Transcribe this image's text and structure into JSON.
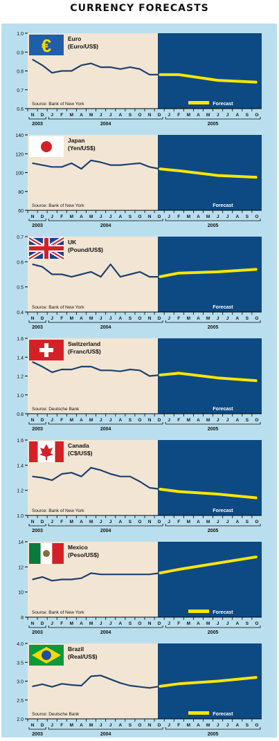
{
  "page_title": "CURRENCY FORECASTS",
  "colors": {
    "background": "#b9dfee",
    "historic_fill": "#f2e5d3",
    "forecast_fill": "#0d4a84",
    "history_line": "#1c3f6e",
    "forecast_line": "#ffe600",
    "axis": "#000000"
  },
  "legend_forecast_label": "Forecast",
  "chart_data": [
    {
      "type": "line",
      "name": "Euro",
      "unit": "(Euro/US$)",
      "flag": "euro-sign-icon",
      "source": "Source: Bank of New York",
      "legend_swatch": true,
      "ylim": [
        0.6,
        1.0
      ],
      "yticks": [
        "0.6",
        "0.7",
        "0.8",
        "0.9",
        "1.0"
      ],
      "ytick_values": [
        0.6,
        0.7,
        0.8,
        0.9,
        1.0
      ],
      "x_labels": [
        "N",
        "D",
        "J",
        "F",
        "M",
        "A",
        "M",
        "J",
        "J",
        "A",
        "S",
        "O",
        "N",
        "D",
        "J",
        "F",
        "M",
        "A",
        "M",
        "J",
        "J",
        "A",
        "S",
        "O"
      ],
      "year_labels": [
        "2003",
        "2004",
        "2005"
      ],
      "history": [
        0.86,
        0.83,
        0.79,
        0.8,
        0.8,
        0.83,
        0.84,
        0.82,
        0.82,
        0.81,
        0.82,
        0.81,
        0.78,
        0.78
      ],
      "forecast": [
        0.78,
        0.78,
        0.75,
        0.74
      ]
    },
    {
      "type": "line",
      "name": "Japan",
      "unit": "(Yen/US$)",
      "flag": "japan-flag-icon",
      "source": "Source: Bank of New York",
      "legend_swatch": false,
      "ylim": [
        60,
        140
      ],
      "yticks": [
        "60",
        "80",
        "100",
        "120",
        "140"
      ],
      "ytick_values": [
        60,
        80,
        100,
        120,
        140
      ],
      "x_labels": [
        "N",
        "D",
        "J",
        "F",
        "M",
        "A",
        "M",
        "J",
        "J",
        "A",
        "S",
        "O",
        "N",
        "D",
        "J",
        "F",
        "M",
        "A",
        "M",
        "J",
        "J",
        "A",
        "S",
        "O"
      ],
      "year_labels": [
        "2003",
        "2004",
        "2005"
      ],
      "history": [
        110,
        108,
        106,
        106,
        110,
        104,
        113,
        111,
        108,
        108,
        109,
        110,
        106,
        104
      ],
      "forecast": [
        104,
        102,
        97,
        95
      ]
    },
    {
      "type": "line",
      "name": "UK",
      "unit": "(Pound/US$)",
      "flag": "uk-flag-icon",
      "source": "Source: Bank of New York",
      "legend_swatch": false,
      "ylim": [
        0.4,
        0.7
      ],
      "yticks": [
        "0.4",
        "0.5",
        "0.6",
        "0.7"
      ],
      "ytick_values": [
        0.4,
        0.5,
        0.6,
        0.7
      ],
      "x_labels": [
        "N",
        "D",
        "J",
        "F",
        "M",
        "A",
        "M",
        "J",
        "J",
        "A",
        "S",
        "O",
        "N",
        "D",
        "J",
        "F",
        "M",
        "A",
        "M",
        "J",
        "J",
        "A",
        "S",
        "O"
      ],
      "year_labels": [
        "2003",
        "2004",
        "2005"
      ],
      "history": [
        0.59,
        0.58,
        0.55,
        0.55,
        0.54,
        0.55,
        0.56,
        0.54,
        0.59,
        0.54,
        0.55,
        0.56,
        0.54,
        0.54
      ],
      "forecast": [
        0.54,
        0.555,
        0.56,
        0.57
      ]
    },
    {
      "type": "line",
      "name": "Switzerland",
      "unit": "(Franc/US$)",
      "flag": "switzerland-flag-icon",
      "source": "Source: Deutsche Bank",
      "legend_swatch": false,
      "ylim": [
        0.8,
        1.6
      ],
      "yticks": [
        "0.8",
        "1.0",
        "1.2",
        "1.4",
        "1.6"
      ],
      "ytick_values": [
        0.8,
        1.0,
        1.2,
        1.4,
        1.6
      ],
      "x_labels": [
        "N",
        "D",
        "J",
        "F",
        "M",
        "A",
        "M",
        "J",
        "J",
        "A",
        "S",
        "O",
        "N",
        "D",
        "J",
        "F",
        "M",
        "A",
        "M",
        "J",
        "J",
        "A",
        "S",
        "O"
      ],
      "year_labels": [
        "2003",
        "2004",
        "2005"
      ],
      "history": [
        1.35,
        1.3,
        1.24,
        1.27,
        1.27,
        1.3,
        1.3,
        1.26,
        1.26,
        1.25,
        1.27,
        1.26,
        1.2,
        1.21
      ],
      "forecast": [
        1.21,
        1.23,
        1.18,
        1.15
      ]
    },
    {
      "type": "line",
      "name": "Canada",
      "unit": "(C$/US$)",
      "flag": "canada-flag-icon",
      "source": "Source: Bank of New York",
      "legend_swatch": false,
      "ylim": [
        1.0,
        1.6
      ],
      "yticks": [
        "1.0",
        "1.2",
        "1.4",
        "1.6"
      ],
      "ytick_values": [
        1.0,
        1.2,
        1.4,
        1.6
      ],
      "x_labels": [
        "N",
        "D",
        "J",
        "F",
        "M",
        "A",
        "M",
        "J",
        "J",
        "A",
        "S",
        "O",
        "N",
        "D",
        "J",
        "F",
        "M",
        "A",
        "M",
        "J",
        "J",
        "A",
        "S",
        "O"
      ],
      "year_labels": [
        "2003",
        "2004",
        "2005"
      ],
      "history": [
        1.31,
        1.3,
        1.28,
        1.33,
        1.34,
        1.31,
        1.38,
        1.36,
        1.33,
        1.31,
        1.31,
        1.27,
        1.22,
        1.21
      ],
      "forecast": [
        1.21,
        1.19,
        1.17,
        1.14
      ]
    },
    {
      "type": "line",
      "name": "Mexico",
      "unit": "(Peso/US$)",
      "flag": "mexico-flag-icon",
      "source": "Source: Bank of New York",
      "legend_swatch": true,
      "ylim": [
        8,
        14
      ],
      "yticks": [
        "8",
        "10",
        "12",
        "14"
      ],
      "ytick_values": [
        8,
        10,
        12,
        14
      ],
      "x_labels": [
        "N",
        "D",
        "J",
        "F",
        "M",
        "A",
        "M",
        "J",
        "J",
        "A",
        "S",
        "O",
        "N",
        "D",
        "J",
        "F",
        "M",
        "A",
        "M",
        "J",
        "J",
        "A",
        "S",
        "O"
      ],
      "year_labels": [
        "2003",
        "2004",
        "2005"
      ],
      "history": [
        11.0,
        11.2,
        10.9,
        11.0,
        11.0,
        11.1,
        11.5,
        11.4,
        11.4,
        11.4,
        11.4,
        11.4,
        11.4,
        11.5
      ],
      "forecast": [
        11.5,
        11.8,
        12.3,
        12.8
      ]
    },
    {
      "type": "line",
      "name": "Brazil",
      "unit": "(Real/US$)",
      "flag": "brazil-flag-icon",
      "source": "Source: Deutsche Bank",
      "legend_swatch": true,
      "ylim": [
        2.0,
        4.0
      ],
      "yticks": [
        "2.0",
        "2.5",
        "3.0",
        "3.5",
        "4.0"
      ],
      "ytick_values": [
        2.0,
        2.5,
        3.0,
        3.5,
        4.0
      ],
      "x_labels": [
        "N",
        "D",
        "J",
        "F",
        "M",
        "A",
        "M",
        "J",
        "J",
        "A",
        "S",
        "O",
        "N",
        "D",
        "J",
        "F",
        "M",
        "A",
        "M",
        "J",
        "J",
        "A",
        "S",
        "O"
      ],
      "year_labels": [
        "2003",
        "2004",
        "2005"
      ],
      "history": [
        2.86,
        2.92,
        2.85,
        2.93,
        2.9,
        2.88,
        3.13,
        3.15,
        3.05,
        2.95,
        2.88,
        2.85,
        2.82,
        2.86
      ],
      "forecast": [
        2.86,
        2.93,
        3.0,
        3.1
      ]
    }
  ]
}
